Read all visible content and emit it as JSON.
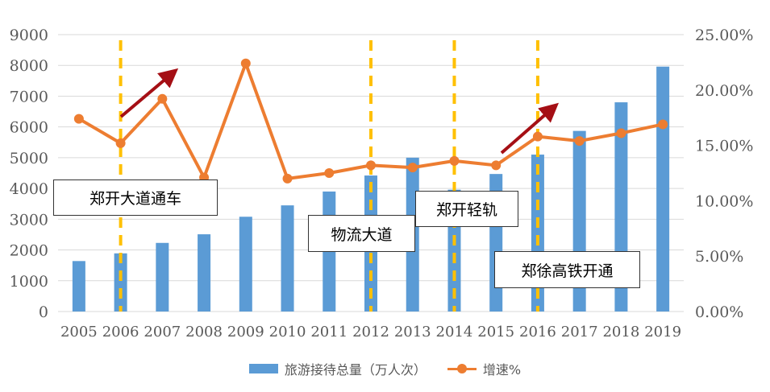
{
  "chart_data": {
    "type": "bar+line",
    "categories": [
      "2005",
      "2006",
      "2007",
      "2008",
      "2009",
      "2010",
      "2011",
      "2012",
      "2013",
      "2014",
      "2015",
      "2016",
      "2017",
      "2018",
      "2019"
    ],
    "series": [
      {
        "name": "旅游接待总量（万人次）",
        "type": "bar",
        "axis": "left",
        "color": "#5B9BD5",
        "values": [
          1640,
          1890,
          2230,
          2510,
          3080,
          3450,
          3900,
          4420,
          5000,
          3960,
          4470,
          5100,
          5870,
          6800,
          7960
        ]
      },
      {
        "name": "增速%",
        "type": "line",
        "axis": "right",
        "color": "#ED7D31",
        "values": [
          17.4,
          15.2,
          19.2,
          12.1,
          22.4,
          12.0,
          12.5,
          13.2,
          13.0,
          13.6,
          13.2,
          15.8,
          15.4,
          16.1,
          16.9
        ]
      }
    ],
    "yleft": {
      "min": 0,
      "max": 9000,
      "step": 1000,
      "ticks": [
        "0",
        "1000",
        "2000",
        "3000",
        "4000",
        "5000",
        "6000",
        "7000",
        "8000",
        "9000"
      ]
    },
    "yright": {
      "min": 0,
      "max": 25,
      "step": 5,
      "ticks": [
        "0.00%",
        "5.00%",
        "10.00%",
        "15.00%",
        "20.00%",
        "25.00%"
      ]
    },
    "grid": true,
    "legend_position": "bottom",
    "milestones": [
      {
        "year": "2006",
        "label": "郑开大道通车"
      },
      {
        "year": "2012",
        "label": "物流大道"
      },
      {
        "year": "2014",
        "label": "郑开轻轨"
      },
      {
        "year": "2016",
        "label": "郑徐高铁开通"
      }
    ],
    "milestone_color": "#FFC000",
    "arrow_color": "#A50F15"
  }
}
